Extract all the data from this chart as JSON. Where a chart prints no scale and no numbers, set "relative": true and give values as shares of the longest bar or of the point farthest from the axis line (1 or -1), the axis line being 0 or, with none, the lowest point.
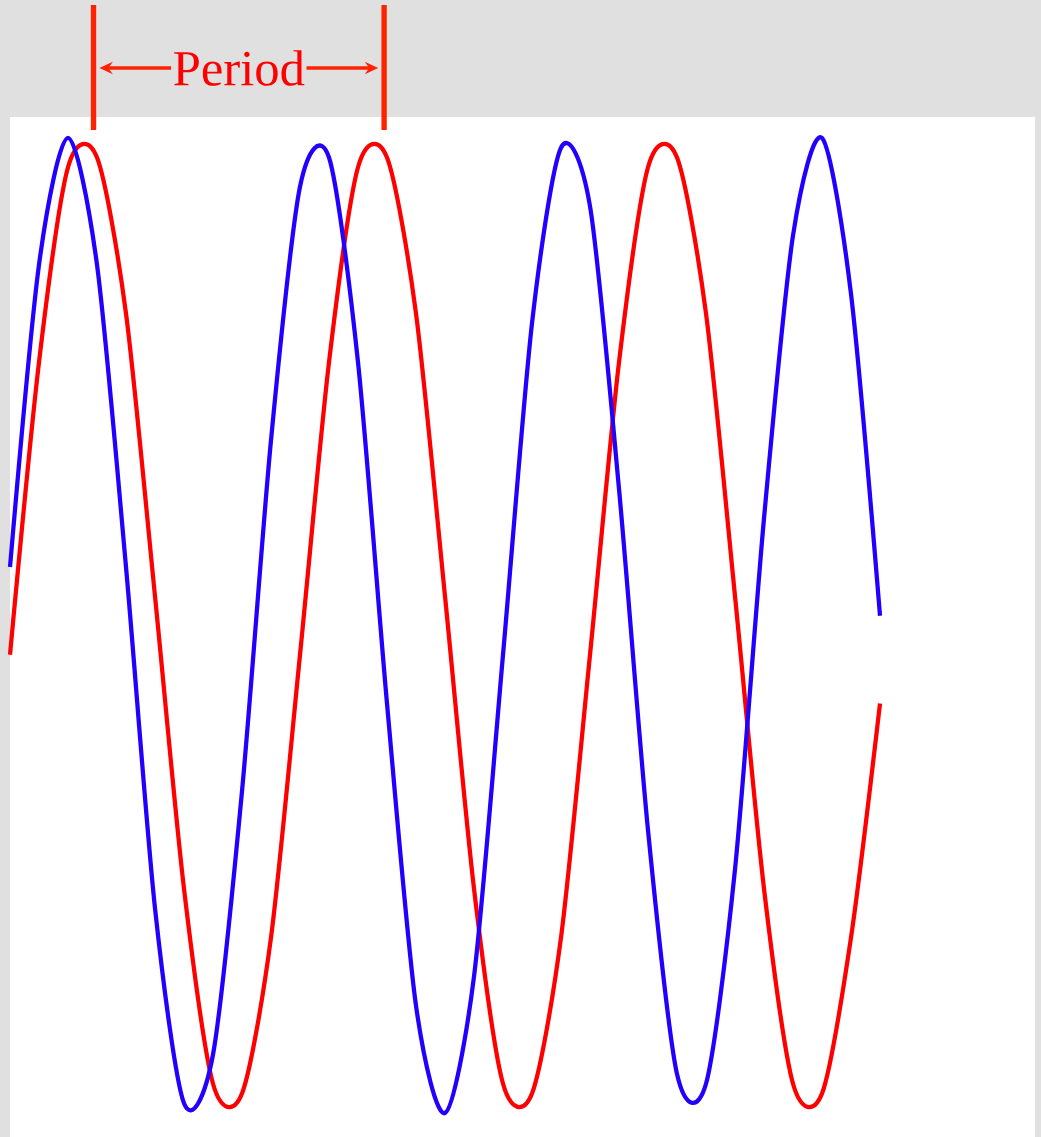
{
  "chart_data": {
    "type": "line",
    "relative": true,
    "categories": [
      null,
      null,
      null,
      null,
      null,
      null,
      null,
      null,
      null,
      null,
      null,
      null,
      null,
      null,
      null,
      null,
      null,
      null,
      null,
      null,
      null,
      null,
      null,
      null,
      null,
      null,
      null,
      null,
      null,
      null,
      null
    ],
    "series": [
      {
        "color": "#ff0000",
        "values": [
          0.47,
          0.77,
          0.97,
          0.98,
          0.82,
          0.53,
          0.23,
          0.03,
          0.02,
          0.18,
          0.47,
          0.77,
          0.97,
          0.98,
          0.82,
          0.53,
          0.23,
          0.03,
          0.02,
          0.18,
          0.47,
          0.77,
          0.97,
          0.98,
          0.82,
          0.53,
          0.23,
          0.03,
          0.02,
          0.18,
          0.42
        ]
      },
      {
        "color": "#2200ff",
        "values": [
          0.56,
          0.87,
          1.0,
          0.87,
          0.56,
          0.21,
          0.01,
          0.06,
          0.33,
          0.69,
          0.95,
          0.98,
          0.77,
          0.42,
          0.11,
          0.0,
          0.14,
          0.47,
          0.81,
          0.99,
          0.93,
          0.64,
          0.29,
          0.04,
          0.03,
          0.25,
          0.61,
          0.9,
          1.0,
          0.84,
          0.51
        ]
      }
    ],
    "annotations": [
      "Period"
    ]
  }
}
